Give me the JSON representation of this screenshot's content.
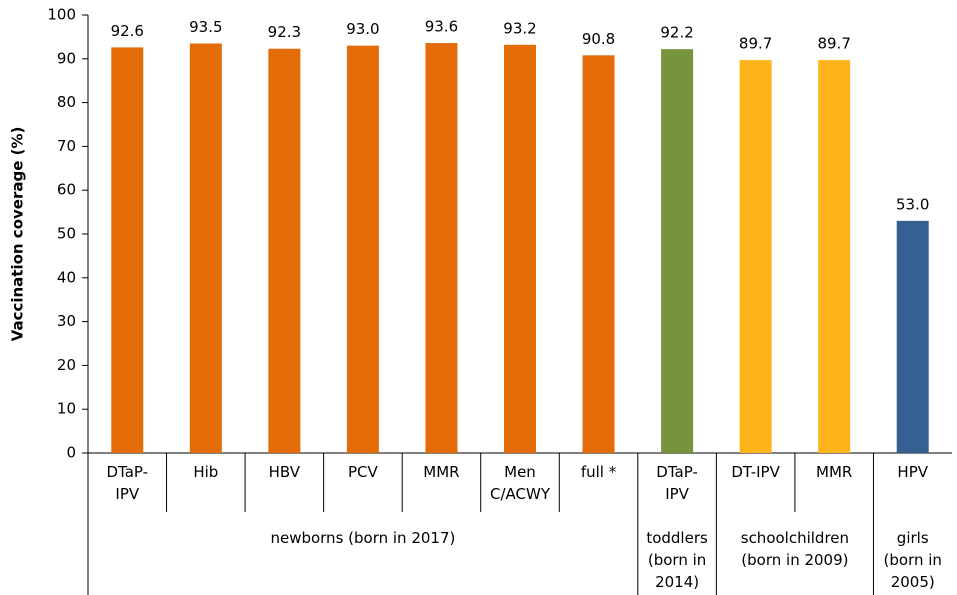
{
  "chart_data": {
    "type": "bar",
    "y_label": "Vaccination coverage (%)",
    "categories": [
      "DTaP-\nIPV",
      "Hib",
      "HBV",
      "PCV",
      "MMR",
      "Men\nC/ACWY",
      "full *",
      "DTaP-\nIPV",
      "DT-IPV",
      "MMR",
      "HPV"
    ],
    "values": [
      92.6,
      93.5,
      92.3,
      93.0,
      93.6,
      93.2,
      90.8,
      92.2,
      89.7,
      89.7,
      53.0
    ],
    "value_labels": [
      "92.6",
      "93.5",
      "92.3",
      "93.0",
      "93.6",
      "93.2",
      "90.8",
      "92.2",
      "89.7",
      "89.7",
      "53.0"
    ],
    "colors": [
      "#e36c09",
      "#e36c09",
      "#e36c09",
      "#e36c09",
      "#e36c09",
      "#e36c09",
      "#e36c09",
      "#77933c",
      "#ffb31a",
      "#ffb31a",
      "#376092"
    ],
    "groups": [
      {
        "label": "newborns (born in 2017)",
        "count": 7
      },
      {
        "label": "toddlers\n(born in\n2014)",
        "count": 1
      },
      {
        "label": "schoolchildren\n(born in 2009)",
        "count": 2
      },
      {
        "label": "girls\n(born in\n2005)",
        "count": 1
      }
    ],
    "ylim": [
      0,
      100
    ],
    "yticks": [
      0,
      10,
      20,
      30,
      40,
      50,
      60,
      70,
      80,
      90,
      100
    ]
  }
}
